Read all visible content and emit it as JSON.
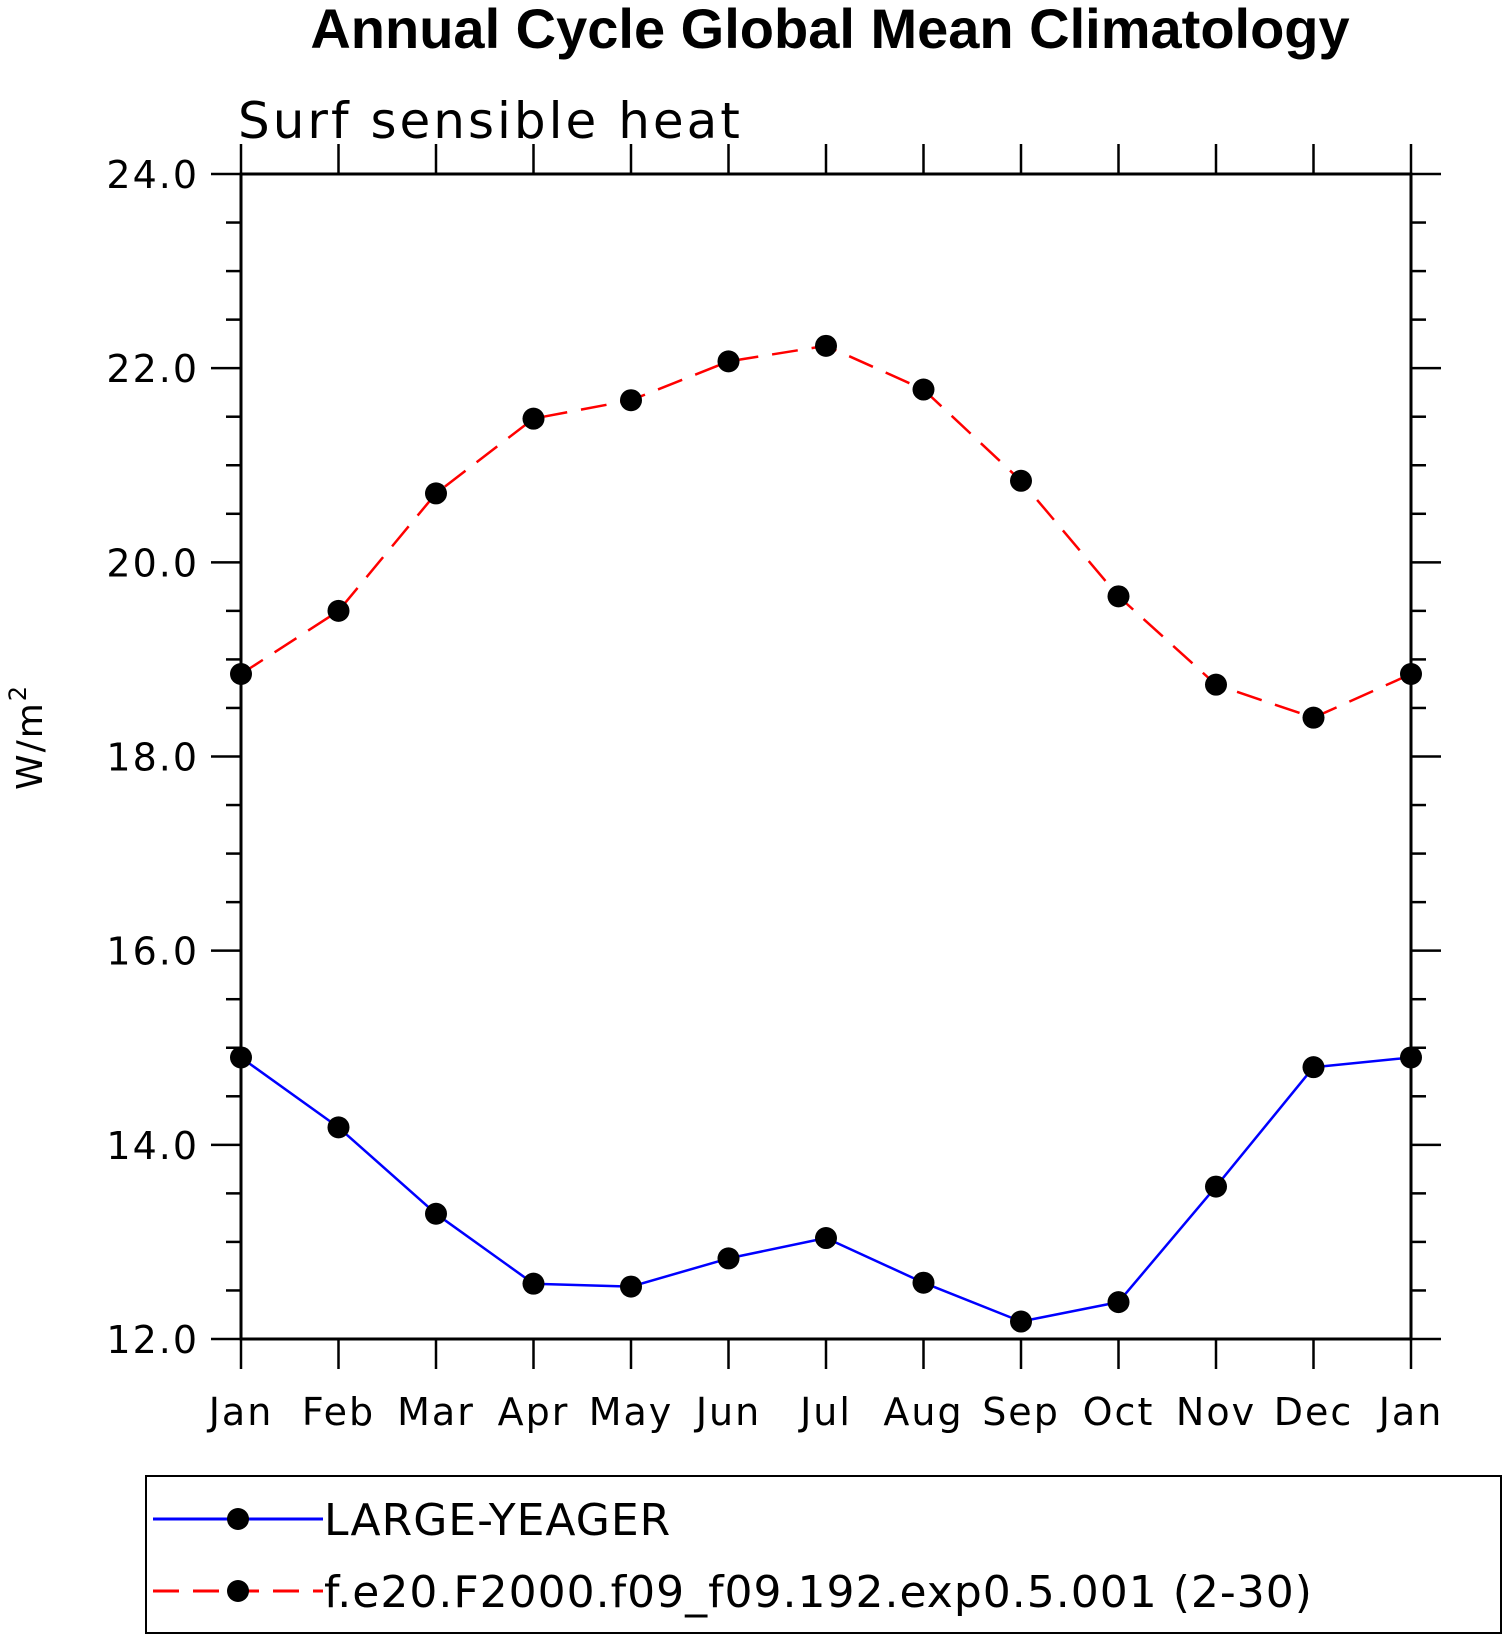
{
  "chart_data": {
    "type": "line",
    "title": "Annual Cycle Global Mean Climatology",
    "subtitle": "Surf sensible heat",
    "xlabel": "",
    "ylabel": "W/m",
    "ylabel_superscript": "2",
    "ylim": [
      12.0,
      24.0
    ],
    "yticks": [
      "12.0",
      "14.0",
      "16.0",
      "18.0",
      "20.0",
      "22.0",
      "24.0"
    ],
    "yticks_values": [
      12,
      14,
      16,
      18,
      20,
      22,
      24
    ],
    "categories": [
      "Jan",
      "Feb",
      "Mar",
      "Apr",
      "May",
      "Jun",
      "Jul",
      "Aug",
      "Sep",
      "Oct",
      "Nov",
      "Dec",
      "Jan"
    ],
    "series": [
      {
        "name": "LARGE-YEAGER",
        "color": "#0000ff",
        "dash": "solid",
        "values": [
          14.9,
          14.18,
          13.29,
          12.57,
          12.54,
          12.83,
          13.04,
          12.58,
          12.18,
          12.38,
          13.57,
          14.8,
          14.9
        ]
      },
      {
        "name": "f.e20.F2000.f09_f09.192.exp0.5.001 (2-30)",
        "color": "#ff0000",
        "dash": "dashed",
        "values": [
          18.85,
          19.5,
          20.71,
          21.48,
          21.67,
          22.07,
          22.23,
          21.78,
          20.84,
          19.65,
          18.74,
          18.4,
          18.85
        ]
      }
    ],
    "marker_color": "#000000"
  }
}
